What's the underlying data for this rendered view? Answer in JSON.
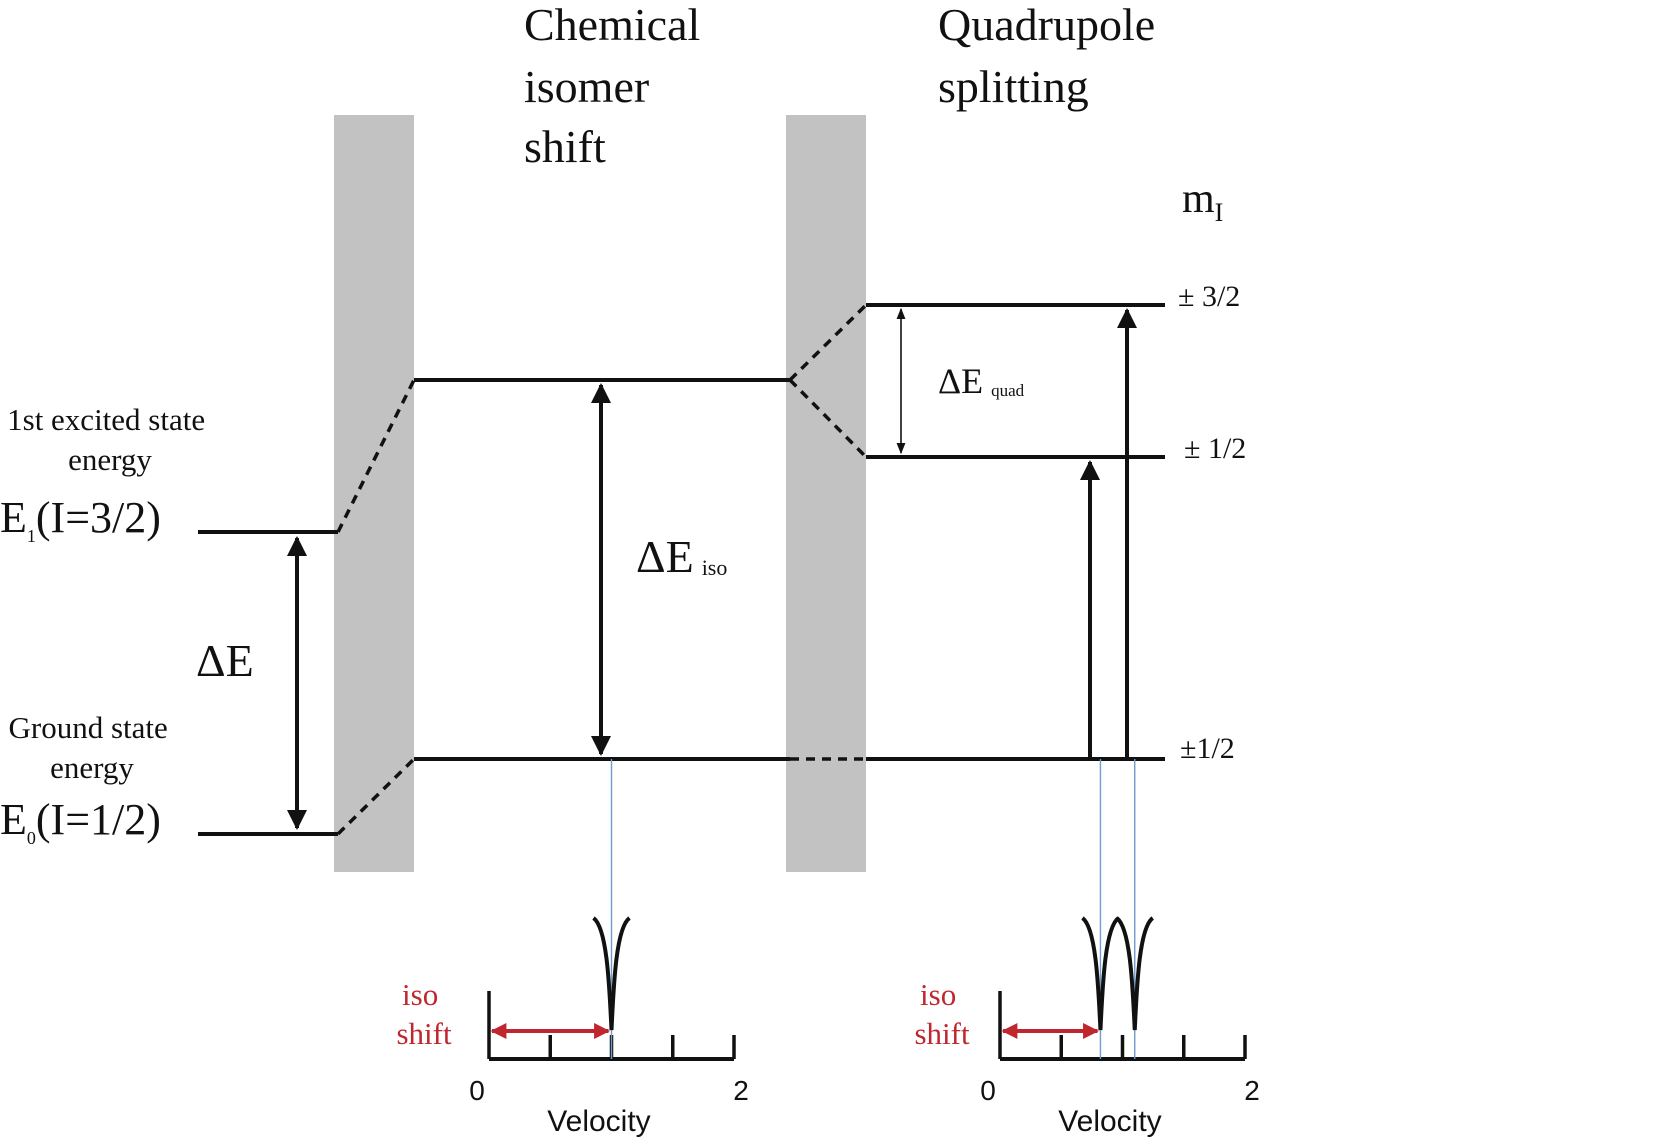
{
  "headings": {
    "chemical_isomer_shift": [
      "Chemical",
      "isomer",
      "shift"
    ],
    "quadrupole_splitting": [
      "Quadrupole",
      "splitting"
    ]
  },
  "m_label": "m",
  "m_label_sub": "I",
  "left_levels": {
    "excited_caption": [
      "1st excited state",
      "energy"
    ],
    "excited_symbol": "E",
    "excited_symbol_sub": "1",
    "excited_state": "(I=3/2)",
    "ground_caption": [
      "Ground state",
      "energy"
    ],
    "ground_symbol": "E",
    "ground_symbol_sub": "0",
    "ground_state": "(I=1/2)",
    "delta_e": "ΔE"
  },
  "delta_e_iso": {
    "symbol": "ΔE",
    "sub": "iso"
  },
  "delta_e_quad": {
    "symbol": "ΔE",
    "sub": "quad"
  },
  "m_values": {
    "upper_3_2": "± 3/2",
    "upper_1_2": "± 1/2",
    "ground_1_2": "±1/2"
  },
  "spectra": [
    {
      "iso_shift_label": [
        "iso",
        "shift"
      ],
      "xlabel": "Velocity",
      "xmin_label": "0",
      "xmax_label": "2",
      "dip_velocities": [
        1.0
      ]
    },
    {
      "iso_shift_label": [
        "iso",
        "shift"
      ],
      "xlabel": "Velocity",
      "xmin_label": "0",
      "xmax_label": "2",
      "dip_velocities": [
        0.82,
        1.1
      ]
    }
  ],
  "colors": {
    "line": "#111111",
    "panel": "#c2c2c2",
    "iso_arrow": "#c0262d",
    "guide": "#6e9ccc"
  }
}
